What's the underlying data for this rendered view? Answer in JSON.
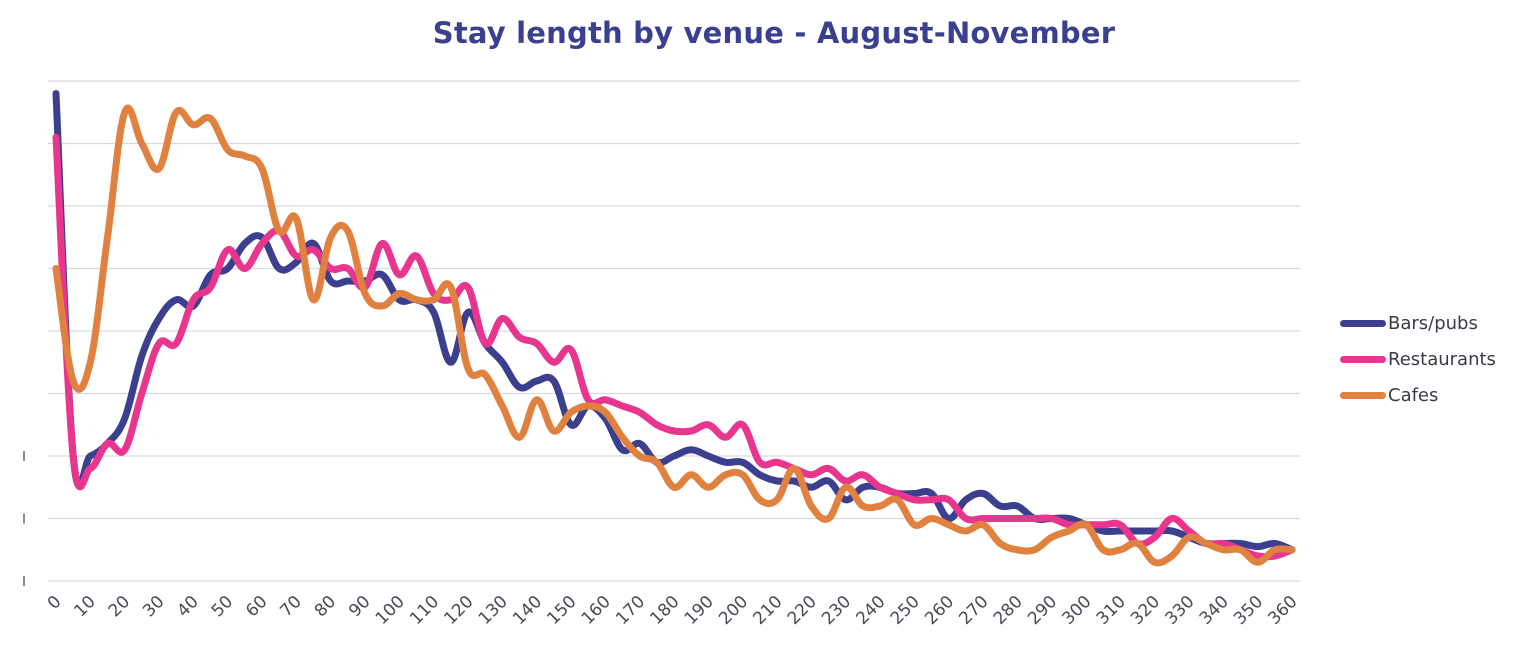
{
  "chart_data": {
    "type": "line",
    "title": "Stay length by venue - August-November",
    "xlabel": "",
    "ylabel": "",
    "x": [
      0,
      5,
      10,
      15,
      20,
      25,
      30,
      35,
      40,
      45,
      50,
      55,
      60,
      65,
      70,
      75,
      80,
      85,
      90,
      95,
      100,
      105,
      110,
      115,
      120,
      125,
      130,
      135,
      140,
      145,
      150,
      155,
      160,
      165,
      170,
      175,
      180,
      185,
      190,
      195,
      200,
      205,
      210,
      215,
      220,
      225,
      230,
      235,
      240,
      245,
      250,
      255,
      260,
      265,
      270,
      275,
      280,
      285,
      290,
      295,
      300,
      305,
      310,
      315,
      320,
      325,
      330,
      335,
      340,
      345,
      350,
      355,
      360
    ],
    "xticks": [
      0,
      10,
      20,
      30,
      40,
      50,
      60,
      70,
      80,
      90,
      100,
      110,
      120,
      130,
      140,
      150,
      160,
      170,
      180,
      190,
      200,
      210,
      220,
      230,
      240,
      250,
      260,
      270,
      280,
      290,
      300,
      310,
      320,
      330,
      340,
      350,
      360
    ],
    "xlim": [
      0,
      360
    ],
    "ylim": [
      0,
      8
    ],
    "grid": true,
    "legend_position": "right",
    "series": [
      {
        "name": "Bars/pubs",
        "color": "#3b3f8e",
        "values": [
          7.8,
          2.0,
          2.0,
          2.2,
          2.6,
          3.6,
          4.2,
          4.5,
          4.4,
          4.9,
          5.0,
          5.4,
          5.5,
          5.0,
          5.1,
          5.4,
          4.8,
          4.8,
          4.8,
          4.9,
          4.5,
          4.5,
          4.3,
          3.5,
          4.3,
          3.8,
          3.5,
          3.1,
          3.2,
          3.2,
          2.5,
          2.8,
          2.6,
          2.1,
          2.2,
          1.9,
          2.0,
          2.1,
          2.0,
          1.9,
          1.9,
          1.7,
          1.6,
          1.6,
          1.5,
          1.6,
          1.3,
          1.5,
          1.5,
          1.4,
          1.4,
          1.4,
          1.0,
          1.3,
          1.4,
          1.2,
          1.2,
          1.0,
          1.0,
          1.0,
          0.9,
          0.8,
          0.8,
          0.8,
          0.8,
          0.8,
          0.7,
          0.6,
          0.6,
          0.6,
          0.55,
          0.6,
          0.5
        ]
      },
      {
        "name": "Restaurants",
        "color": "#e8368f",
        "values": [
          7.1,
          2.0,
          1.8,
          2.2,
          2.1,
          3.0,
          3.8,
          3.8,
          4.5,
          4.7,
          5.3,
          5.0,
          5.4,
          5.6,
          5.2,
          5.3,
          5.0,
          5.0,
          4.7,
          5.4,
          4.9,
          5.2,
          4.6,
          4.5,
          4.7,
          3.8,
          4.2,
          3.9,
          3.8,
          3.5,
          3.7,
          2.9,
          2.9,
          2.8,
          2.7,
          2.5,
          2.4,
          2.4,
          2.5,
          2.3,
          2.5,
          1.9,
          1.9,
          1.8,
          1.7,
          1.8,
          1.6,
          1.7,
          1.5,
          1.4,
          1.3,
          1.3,
          1.3,
          1.0,
          1.0,
          1.0,
          1.0,
          1.0,
          1.0,
          0.9,
          0.9,
          0.9,
          0.9,
          0.6,
          0.7,
          1.0,
          0.8,
          0.6,
          0.6,
          0.5,
          0.4,
          0.4,
          0.5
        ]
      },
      {
        "name": "Cafes",
        "color": "#e0813f",
        "values": [
          5.0,
          3.2,
          3.5,
          5.5,
          7.5,
          7.0,
          6.6,
          7.5,
          7.3,
          7.4,
          6.9,
          6.8,
          6.6,
          5.6,
          5.8,
          4.5,
          5.5,
          5.6,
          4.6,
          4.4,
          4.6,
          4.5,
          4.5,
          4.7,
          3.4,
          3.3,
          2.8,
          2.3,
          2.9,
          2.4,
          2.7,
          2.8,
          2.7,
          2.3,
          2.0,
          1.9,
          1.5,
          1.7,
          1.5,
          1.7,
          1.7,
          1.3,
          1.3,
          1.8,
          1.2,
          1.0,
          1.5,
          1.2,
          1.2,
          1.3,
          0.9,
          1.0,
          0.9,
          0.8,
          0.9,
          0.6,
          0.5,
          0.5,
          0.7,
          0.8,
          0.9,
          0.5,
          0.5,
          0.6,
          0.3,
          0.4,
          0.7,
          0.6,
          0.5,
          0.5,
          0.3,
          0.5,
          0.5
        ]
      }
    ]
  }
}
